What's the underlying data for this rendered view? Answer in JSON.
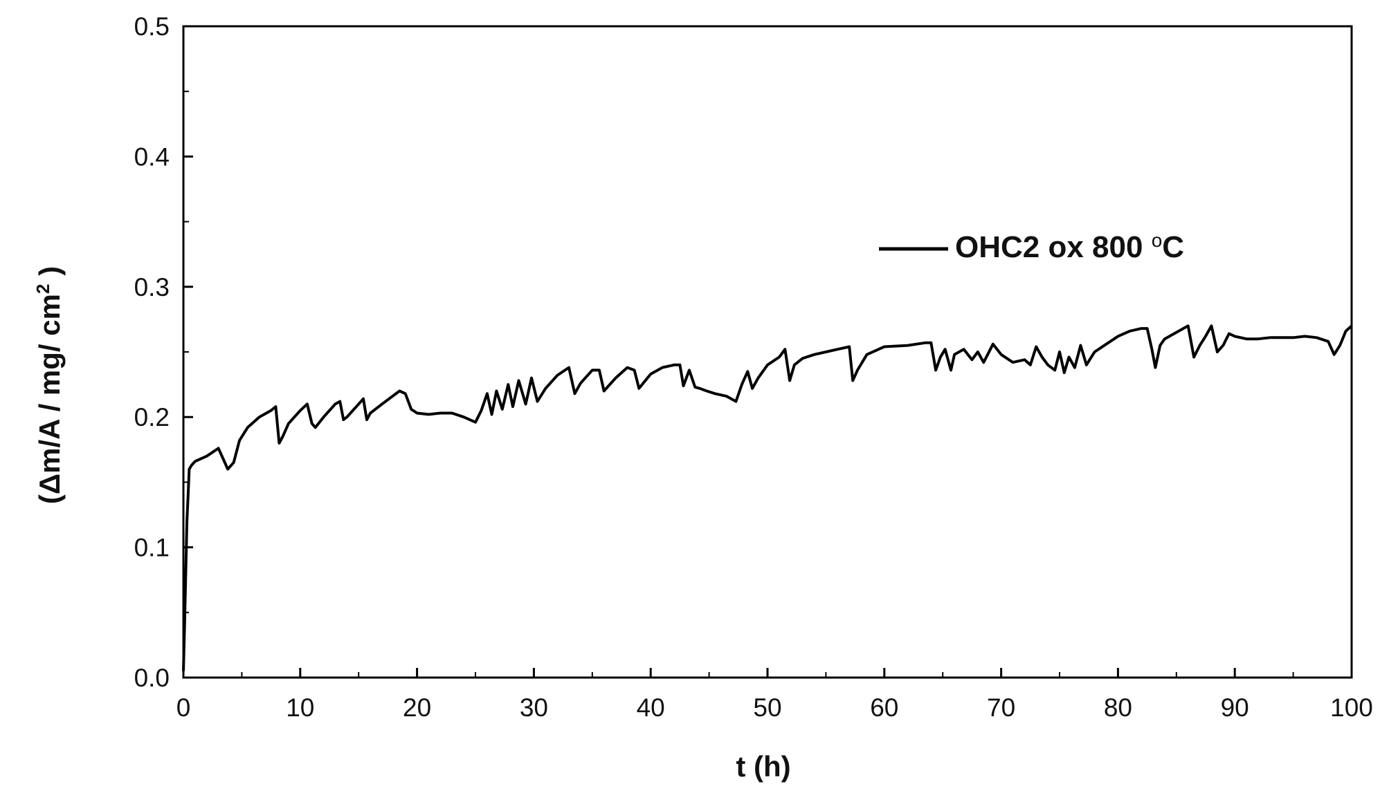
{
  "chart_data": {
    "type": "line",
    "title": "",
    "xlabel": "t (h)",
    "ylabel": {
      "prefix": "(",
      "delta": "Δ",
      "main": "m/A  / mg/ cm",
      "sup": "2",
      "suffix": " )"
    },
    "xlim": [
      0,
      100
    ],
    "ylim": [
      0.0,
      0.5
    ],
    "xticks": [
      0,
      10,
      20,
      30,
      40,
      50,
      60,
      70,
      80,
      90,
      100
    ],
    "xtick_labels": [
      "0",
      "10",
      "20",
      "30",
      "40",
      "50",
      "60",
      "70",
      "80",
      "90",
      "100"
    ],
    "yticks": [
      0.0,
      0.1,
      0.2,
      0.3,
      0.4,
      0.5
    ],
    "ytick_labels": [
      "0.0",
      "0.1",
      "0.2",
      "0.3",
      "0.4",
      "0.5"
    ],
    "grid": false,
    "legend": {
      "position": "upper-right",
      "entries": [
        {
          "main": "OHC2 ox 800 ",
          "sup": "o",
          "suffix": "C"
        }
      ]
    },
    "series": [
      {
        "color": "#000000",
        "x": [
          0,
          0.1,
          0.2,
          0.3,
          0.4,
          0.5,
          0.7,
          1.0,
          1.5,
          2.0,
          2.5,
          3.0,
          3.4,
          3.8,
          4.3,
          4.8,
          5.5,
          6.5,
          7.5,
          7.9,
          8.2,
          8.5,
          9.0,
          10.0,
          10.6,
          11.0,
          11.3,
          12.0,
          13.0,
          13.4,
          13.7,
          14.0,
          15.0,
          15.4,
          15.7,
          16.0,
          17.0,
          18.5,
          19.0,
          19.5,
          20.0,
          21.0,
          22.0,
          23.0,
          24.0,
          25.0,
          25.5,
          26.0,
          26.4,
          26.8,
          27.3,
          27.8,
          28.2,
          28.7,
          29.3,
          29.8,
          30.3,
          31.0,
          32.0,
          33.0,
          33.5,
          34.0,
          35.0,
          35.6,
          36.0,
          37.0,
          38.0,
          38.6,
          39.0,
          40.0,
          41.0,
          42.0,
          42.5,
          42.8,
          43.3,
          43.8,
          44.2,
          44.8,
          45.5,
          46.5,
          47.3,
          47.8,
          48.3,
          48.7,
          49.2,
          50.0,
          51.0,
          51.5,
          51.9,
          52.3,
          53.0,
          54.0,
          55.0,
          56.0,
          57.0,
          57.3,
          57.7,
          58.5,
          60.0,
          62.0,
          63.5,
          64.0,
          64.4,
          64.8,
          65.2,
          65.7,
          66.0,
          66.8,
          67.5,
          68.0,
          68.5,
          69.3,
          70.0,
          71.0,
          72.0,
          72.5,
          73.0,
          73.5,
          74.0,
          74.6,
          75.0,
          75.4,
          75.8,
          76.3,
          76.8,
          77.3,
          78.0,
          79.0,
          80.0,
          81.0,
          82.0,
          82.5,
          82.9,
          83.2,
          83.6,
          84.0,
          85.0,
          86.0,
          86.5,
          87.0,
          87.5,
          88.0,
          88.5,
          89.0,
          89.5,
          90.0,
          91.0,
          92.0,
          93.0,
          94.0,
          95.0,
          96.0,
          97.0,
          98.0,
          98.5,
          99.0,
          99.5,
          100.0
        ],
        "y": [
          0.005,
          0.04,
          0.08,
          0.12,
          0.14,
          0.16,
          0.163,
          0.166,
          0.168,
          0.17,
          0.173,
          0.176,
          0.168,
          0.16,
          0.165,
          0.182,
          0.192,
          0.2,
          0.205,
          0.208,
          0.18,
          0.185,
          0.195,
          0.205,
          0.21,
          0.195,
          0.192,
          0.2,
          0.21,
          0.212,
          0.198,
          0.2,
          0.21,
          0.214,
          0.198,
          0.203,
          0.21,
          0.22,
          0.218,
          0.206,
          0.203,
          0.202,
          0.203,
          0.203,
          0.2,
          0.196,
          0.205,
          0.218,
          0.202,
          0.22,
          0.206,
          0.225,
          0.208,
          0.228,
          0.21,
          0.23,
          0.212,
          0.222,
          0.232,
          0.238,
          0.218,
          0.226,
          0.236,
          0.236,
          0.22,
          0.23,
          0.238,
          0.236,
          0.222,
          0.233,
          0.238,
          0.24,
          0.24,
          0.224,
          0.236,
          0.223,
          0.222,
          0.22,
          0.218,
          0.216,
          0.212,
          0.225,
          0.235,
          0.222,
          0.23,
          0.24,
          0.246,
          0.252,
          0.228,
          0.24,
          0.245,
          0.248,
          0.25,
          0.252,
          0.254,
          0.228,
          0.236,
          0.248,
          0.254,
          0.255,
          0.257,
          0.257,
          0.236,
          0.246,
          0.252,
          0.236,
          0.248,
          0.252,
          0.244,
          0.25,
          0.242,
          0.256,
          0.248,
          0.242,
          0.244,
          0.24,
          0.254,
          0.246,
          0.24,
          0.236,
          0.25,
          0.234,
          0.246,
          0.238,
          0.255,
          0.24,
          0.25,
          0.256,
          0.262,
          0.266,
          0.268,
          0.268,
          0.252,
          0.238,
          0.255,
          0.26,
          0.265,
          0.27,
          0.246,
          0.255,
          0.262,
          0.27,
          0.25,
          0.255,
          0.264,
          0.262,
          0.26,
          0.26,
          0.261,
          0.261,
          0.261,
          0.262,
          0.261,
          0.258,
          0.248,
          0.255,
          0.266,
          0.27
        ]
      }
    ]
  }
}
